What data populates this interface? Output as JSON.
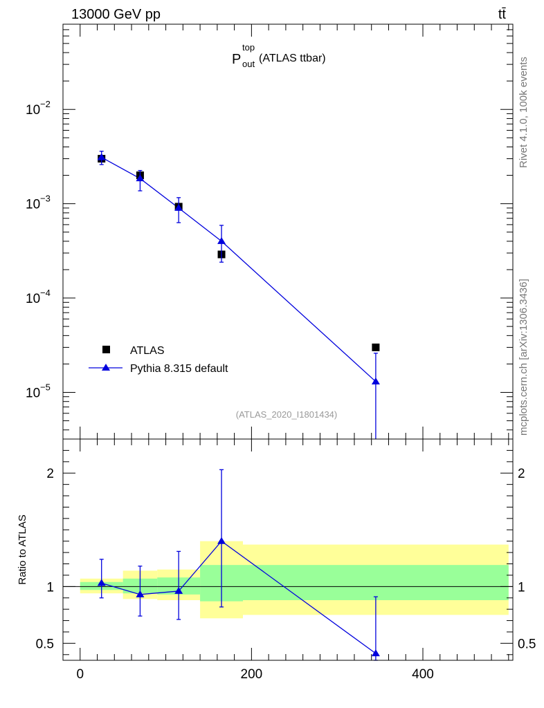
{
  "header": {
    "left": "13000 GeV pp",
    "right": "tt̄"
  },
  "side_text": {
    "rivet": "Rivet 4.1.0,  100k events",
    "mcplots": "mcplots.cern.ch [arXiv:1306.3436]"
  },
  "chart_data": [
    {
      "type": "scatter",
      "panel": "main",
      "title": {
        "base": "P",
        "sup": "top",
        "sub": "out",
        "suffix": " (ATLAS ttbar)"
      },
      "watermark": "(ATLAS_2020_I1801434)",
      "yscale": "log",
      "xlim": [
        -20,
        505
      ],
      "ylim": [
        3.2e-06,
        0.08
      ],
      "ytick_labels": [
        {
          "value": 1e-05,
          "base": "10",
          "exp": "−5"
        },
        {
          "value": 0.0001,
          "base": "10",
          "exp": "−4"
        },
        {
          "value": 0.001,
          "base": "10",
          "exp": "−3"
        },
        {
          "value": 0.01,
          "base": "10",
          "exp": "−2"
        }
      ],
      "legend": {
        "position": "bottom-left"
      },
      "series": [
        {
          "name": "ATLAS",
          "marker": "square",
          "color": "#000000",
          "points": [
            {
              "x": 25,
              "y": 0.003,
              "ylo": 0.0027,
              "yhi": 0.0033
            },
            {
              "x": 70,
              "y": 0.002,
              "ylo": 0.00185,
              "yhi": 0.00215
            },
            {
              "x": 115,
              "y": 0.00093,
              "ylo": 0.00086,
              "yhi": 0.001
            },
            {
              "x": 165,
              "y": 0.00029,
              "ylo": 0.00027,
              "yhi": 0.00031
            },
            {
              "x": 345,
              "y": 3e-05,
              "ylo": 2.8e-05,
              "yhi": 3.2e-05
            }
          ]
        },
        {
          "name": "Pythia 8.315 default",
          "marker": "triangle",
          "color": "#0000dd",
          "points": [
            {
              "x": 25,
              "y": 0.0031,
              "ylo": 0.0026,
              "yhi": 0.0036
            },
            {
              "x": 70,
              "y": 0.00185,
              "ylo": 0.00137,
              "yhi": 0.00225
            },
            {
              "x": 115,
              "y": 0.0009,
              "ylo": 0.00063,
              "yhi": 0.00116
            },
            {
              "x": 165,
              "y": 0.0004,
              "ylo": 0.00024,
              "yhi": 0.00059
            },
            {
              "x": 345,
              "y": 1.3e-05,
              "ylo": 3e-06,
              "yhi": 2.6e-05
            }
          ]
        }
      ]
    },
    {
      "type": "line",
      "panel": "ratio",
      "ylabel": "Ratio to ATLAS",
      "xlim": [
        -20,
        505
      ],
      "ylim": [
        0.35,
        2.3
      ],
      "yticks": [
        0.5,
        1,
        2
      ],
      "ytick_labels": [
        "0.5",
        "1",
        "2"
      ],
      "xticks": [
        0,
        200,
        400
      ],
      "xtick_labels": [
        "0",
        "200",
        "400"
      ],
      "reference_line": 1,
      "bands": [
        {
          "x0": 0,
          "x1": 50,
          "green": [
            0.97,
            1.04
          ],
          "yellow": [
            0.94,
            1.07
          ]
        },
        {
          "x0": 50,
          "x1": 90,
          "green": [
            0.94,
            1.07
          ],
          "yellow": [
            0.89,
            1.14
          ]
        },
        {
          "x0": 90,
          "x1": 140,
          "green": [
            0.93,
            1.08
          ],
          "yellow": [
            0.88,
            1.15
          ]
        },
        {
          "x0": 140,
          "x1": 190,
          "green": [
            0.87,
            1.19
          ],
          "yellow": [
            0.72,
            1.4
          ]
        },
        {
          "x0": 190,
          "x1": 500,
          "green": [
            0.88,
            1.19
          ],
          "yellow": [
            0.75,
            1.37
          ]
        }
      ],
      "series": [
        {
          "name": "Pythia 8.315 default",
          "color": "#0000dd",
          "points": [
            {
              "x": 25,
              "y": 1.03,
              "ylo": 0.9,
              "yhi": 1.24
            },
            {
              "x": 70,
              "y": 0.93,
              "ylo": 0.74,
              "yhi": 1.18
            },
            {
              "x": 115,
              "y": 0.96,
              "ylo": 0.71,
              "yhi": 1.31
            },
            {
              "x": 165,
              "y": 1.4,
              "ylo": 0.82,
              "yhi": 2.03
            },
            {
              "x": 345,
              "y": 0.41,
              "ylo": 0.35,
              "yhi": 0.91
            }
          ]
        }
      ]
    }
  ]
}
